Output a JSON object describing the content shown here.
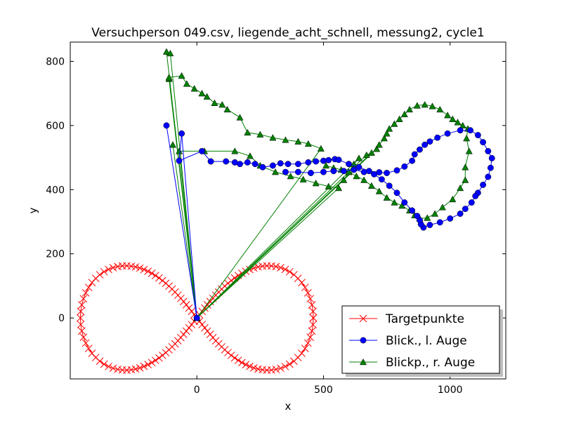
{
  "chart_data": {
    "type": "scatter",
    "title": "Versuchperson 049.csv, liegende_acht_schnell, messung2, cycle1",
    "xlabel": "x",
    "ylabel": "y",
    "xlim": [
      -500,
      1220
    ],
    "ylim": [
      -190,
      860
    ],
    "xticks": [
      0,
      500,
      1000
    ],
    "yticks": [
      0,
      200,
      400,
      600,
      800
    ],
    "grid": false,
    "legend_position": "lower-right",
    "target_curve": {
      "type": "lemniscate",
      "a": 460,
      "points": 140
    },
    "series": [
      {
        "name": "Targetpunkte",
        "color": "#ff0000",
        "marker": "x",
        "x_range": [
          -460,
          460
        ],
        "y_range": [
          -163,
          163
        ]
      },
      {
        "name": "Blick., l. Auge",
        "color": "#0000ff",
        "marker": "o",
        "points": [
          [
            0,
            0
          ],
          [
            -120,
            600
          ],
          [
            0,
            0
          ],
          [
            -60,
            575
          ],
          [
            -70,
            490
          ],
          [
            20,
            520
          ],
          [
            55,
            488
          ],
          [
            115,
            488
          ],
          [
            150,
            485
          ],
          [
            170,
            480
          ],
          [
            200,
            485
          ],
          [
            230,
            480
          ],
          [
            260,
            470
          ],
          [
            300,
            475
          ],
          [
            330,
            482
          ],
          [
            360,
            480
          ],
          [
            400,
            480
          ],
          [
            440,
            485
          ],
          [
            470,
            488
          ],
          [
            500,
            490
          ],
          [
            520,
            492
          ],
          [
            545,
            495
          ],
          [
            560,
            493
          ],
          [
            600,
            480
          ],
          [
            640,
            470
          ],
          [
            680,
            458
          ],
          [
            720,
            454
          ],
          [
            750,
            452
          ],
          [
            790,
            460
          ],
          [
            820,
            472
          ],
          [
            850,
            490
          ],
          [
            860,
            510
          ],
          [
            880,
            525
          ],
          [
            900,
            540
          ],
          [
            920,
            550
          ],
          [
            950,
            562
          ],
          [
            990,
            575
          ],
          [
            1040,
            585
          ],
          [
            1080,
            585
          ],
          [
            1110,
            570
          ],
          [
            1130,
            548
          ],
          [
            1150,
            520
          ],
          [
            1165,
            498
          ],
          [
            1160,
            468
          ],
          [
            1150,
            440
          ],
          [
            1130,
            415
          ],
          [
            1110,
            390
          ],
          [
            1100,
            380
          ],
          [
            1085,
            360
          ],
          [
            1060,
            340
          ],
          [
            1040,
            325
          ],
          [
            1000,
            310
          ],
          [
            960,
            298
          ],
          [
            920,
            290
          ],
          [
            895,
            282
          ],
          [
            885,
            292
          ],
          [
            880,
            305
          ],
          [
            870,
            318
          ],
          [
            850,
            335
          ],
          [
            820,
            360
          ],
          [
            790,
            390
          ],
          [
            760,
            412
          ],
          [
            730,
            432
          ],
          [
            700,
            448
          ],
          [
            660,
            455
          ],
          [
            620,
            462
          ],
          [
            580,
            458
          ],
          [
            540,
            458
          ],
          [
            500,
            455
          ],
          [
            450,
            452
          ],
          [
            400,
            455
          ],
          [
            350,
            455
          ]
        ]
      },
      {
        "name": "Blickp., r. Auge",
        "color": "#008000",
        "marker": "^",
        "points": [
          [
            0,
            0
          ],
          [
            -120,
            830
          ],
          [
            0,
            0
          ],
          [
            -105,
            825
          ],
          [
            0,
            0
          ],
          [
            -110,
            745
          ],
          [
            0,
            0
          ],
          [
            -95,
            540
          ],
          [
            0,
            0
          ],
          [
            -110,
            750
          ],
          [
            -60,
            755
          ],
          [
            -40,
            730
          ],
          [
            -10,
            715
          ],
          [
            20,
            700
          ],
          [
            40,
            690
          ],
          [
            70,
            670
          ],
          [
            100,
            665
          ],
          [
            120,
            650
          ],
          [
            170,
            625
          ],
          [
            200,
            578
          ],
          [
            250,
            572
          ],
          [
            300,
            562
          ],
          [
            350,
            555
          ],
          [
            400,
            550
          ],
          [
            440,
            543
          ],
          [
            490,
            528
          ],
          [
            0,
            0
          ],
          [
            -70,
            520
          ],
          [
            30,
            520
          ],
          [
            150,
            520
          ],
          [
            210,
            505
          ],
          [
            250,
            475
          ],
          [
            310,
            455
          ],
          [
            370,
            442
          ],
          [
            420,
            432
          ],
          [
            470,
            420
          ],
          [
            520,
            410
          ],
          [
            560,
            405
          ],
          [
            0,
            0
          ],
          [
            580,
            430
          ],
          [
            600,
            455
          ],
          [
            620,
            480
          ],
          [
            640,
            498
          ],
          [
            0,
            0
          ],
          [
            670,
            508
          ],
          [
            690,
            515
          ],
          [
            0,
            0
          ],
          [
            710,
            527
          ],
          [
            720,
            540
          ],
          [
            740,
            560
          ],
          [
            750,
            575
          ],
          [
            760,
            590
          ],
          [
            780,
            605
          ],
          [
            800,
            620
          ],
          [
            820,
            635
          ],
          [
            840,
            650
          ],
          [
            870,
            662
          ],
          [
            900,
            665
          ],
          [
            930,
            660
          ],
          [
            960,
            650
          ],
          [
            990,
            632
          ],
          [
            1010,
            620
          ],
          [
            1030,
            610
          ],
          [
            1050,
            600
          ],
          [
            1070,
            590
          ],
          [
            1065,
            560
          ],
          [
            1075,
            520
          ],
          [
            1060,
            470
          ],
          [
            1060,
            430
          ],
          [
            1040,
            405
          ],
          [
            1010,
            370
          ],
          [
            970,
            345
          ],
          [
            940,
            325
          ],
          [
            910,
            312
          ],
          [
            880,
            310
          ],
          [
            860,
            320
          ],
          [
            840,
            335
          ],
          [
            810,
            350
          ],
          [
            780,
            360
          ],
          [
            750,
            375
          ],
          [
            720,
            395
          ],
          [
            690,
            412
          ],
          [
            660,
            430
          ],
          [
            630,
            442
          ],
          [
            600,
            455
          ],
          [
            570,
            462
          ],
          [
            540,
            468
          ],
          [
            510,
            475
          ]
        ]
      }
    ]
  }
}
